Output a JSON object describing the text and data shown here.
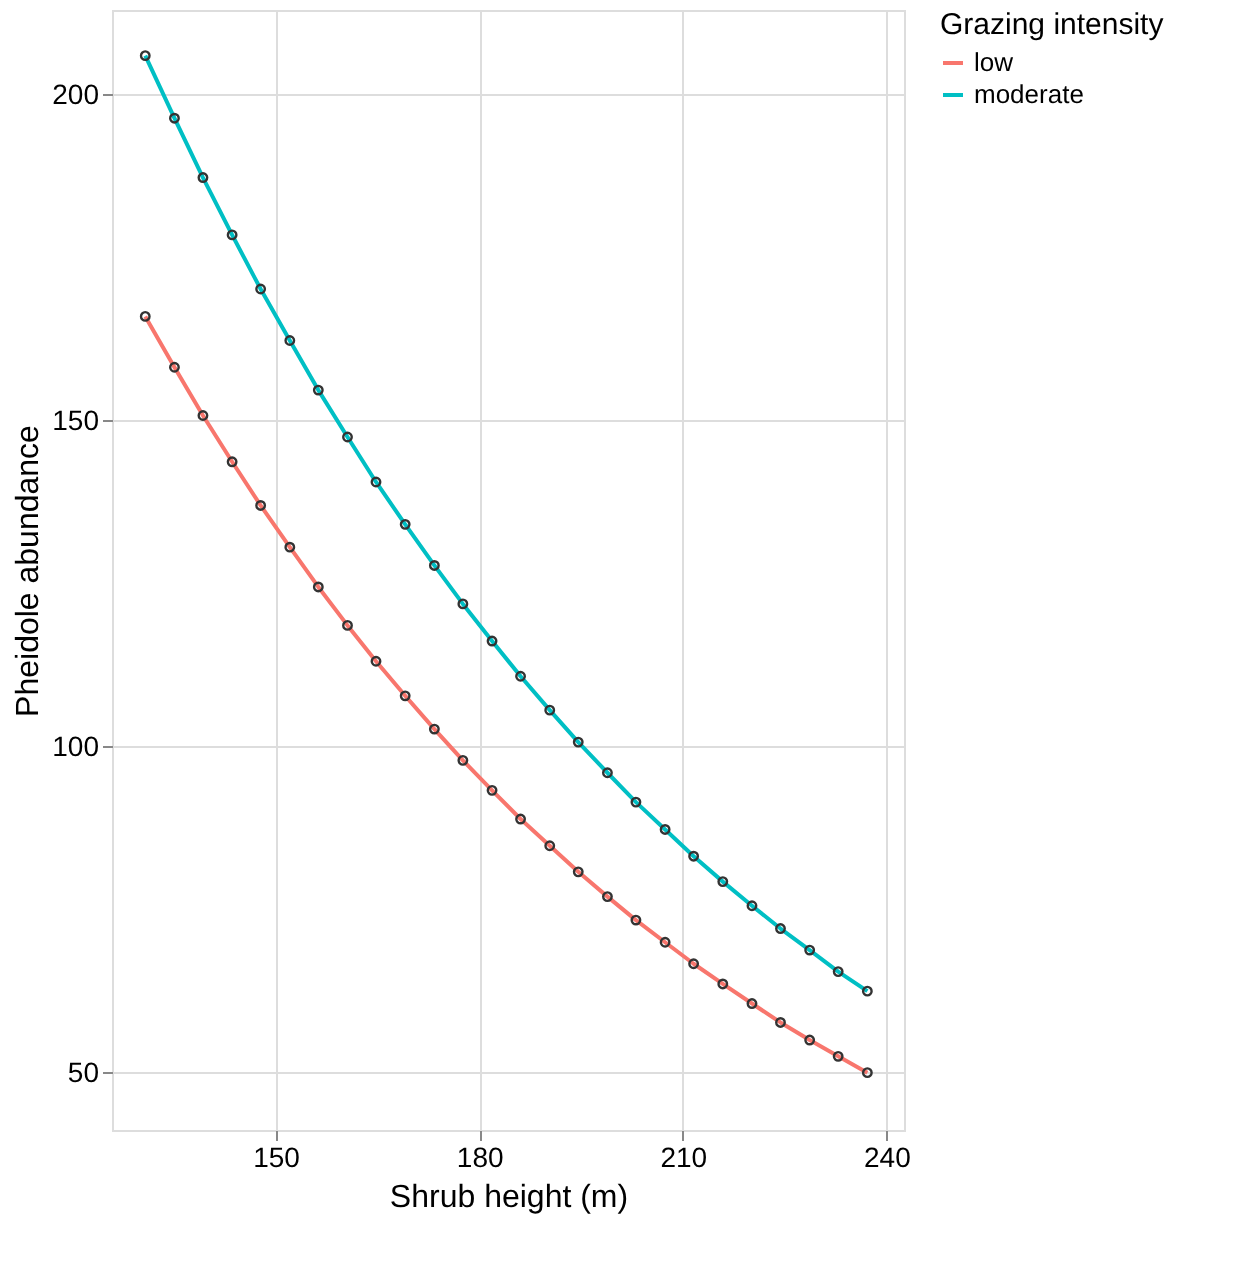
{
  "chart_data": {
    "type": "line",
    "xlabel": "Shrub height (m)",
    "ylabel": "Pheidole abundance",
    "legend_title": "Grazing intensity",
    "x": [
      130.8,
      135.1,
      139.3,
      143.6,
      147.8,
      152.1,
      156.3,
      160.6,
      164.8,
      169.1,
      173.4,
      177.6,
      181.9,
      186.1,
      190.4,
      194.6,
      198.9,
      203.1,
      207.4,
      211.6,
      215.9,
      220.2,
      224.4,
      228.7,
      232.9,
      237.2
    ],
    "series": [
      {
        "name": "low",
        "color": "#f8766d",
        "values": [
          166.0,
          158.2,
          150.8,
          143.7,
          137.0,
          130.6,
          124.5,
          118.6,
          113.1,
          107.8,
          102.7,
          97.9,
          93.3,
          88.9,
          84.8,
          80.8,
          77.0,
          73.4,
          70.0,
          66.7,
          63.6,
          60.6,
          57.7,
          55.0,
          52.5,
          50.0
        ]
      },
      {
        "name": "moderate",
        "color": "#00bfc4",
        "values": [
          206.0,
          196.4,
          187.3,
          178.5,
          170.2,
          162.3,
          154.7,
          147.5,
          140.6,
          134.1,
          127.8,
          121.9,
          116.2,
          110.8,
          105.6,
          100.7,
          96.0,
          91.5,
          87.3,
          83.2,
          79.3,
          75.6,
          72.1,
          68.8,
          65.5,
          62.5
        ]
      }
    ],
    "xlim": [
      125.9,
      242.6
    ],
    "xticks": [
      150,
      180,
      210,
      240
    ],
    "ylim": [
      41.2,
      213
    ],
    "yticks": [
      50,
      100,
      150,
      200
    ],
    "grid": true,
    "legend": "right",
    "marker": "circle",
    "line_style": "solid"
  }
}
